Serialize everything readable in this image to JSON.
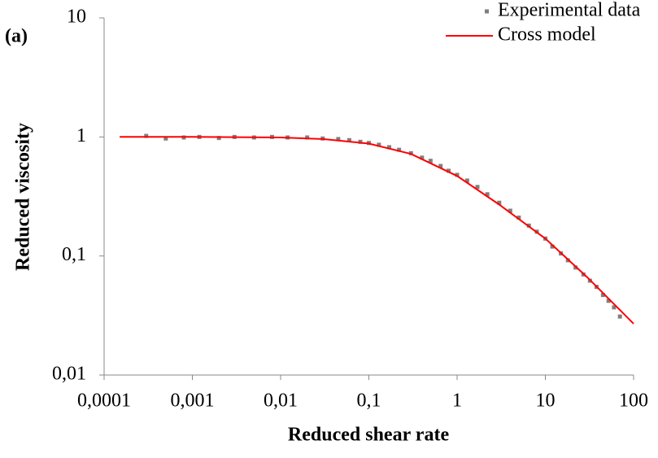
{
  "chart_data": {
    "type": "scatter",
    "annotation": "(a)",
    "x_label": "Reduced shear rate",
    "y_label": "Reduced viscosity",
    "xscale": "log",
    "yscale": "log",
    "xlim": [
      0.0001,
      100
    ],
    "ylim": [
      0.01,
      10
    ],
    "xticks": [
      {
        "value": 0.0001,
        "label": "0,0001"
      },
      {
        "value": 0.001,
        "label": "0,001"
      },
      {
        "value": 0.01,
        "label": "0,01"
      },
      {
        "value": 0.1,
        "label": "0,1"
      },
      1,
      10,
      100
    ],
    "yticks": [
      {
        "value": 0.01,
        "label": "0,01"
      },
      {
        "value": 0.1,
        "label": "0,1"
      },
      1,
      10
    ],
    "legend": "upper right",
    "series": [
      {
        "name": "Experimental data",
        "kind": "scatter",
        "color": "#7f7f7f",
        "x": [
          0.0003,
          0.0005,
          0.0008,
          0.0012,
          0.002,
          0.003,
          0.005,
          0.008,
          0.012,
          0.02,
          0.03,
          0.045,
          0.06,
          0.08,
          0.1,
          0.13,
          0.17,
          0.22,
          0.3,
          0.4,
          0.5,
          0.65,
          0.8,
          1,
          1.3,
          1.7,
          2.2,
          3,
          4,
          5,
          6.5,
          8,
          10,
          12,
          15,
          18,
          22,
          27,
          32,
          38,
          45,
          52,
          60,
          70
        ],
        "values": [
          1.02,
          0.97,
          0.99,
          1.0,
          0.98,
          1.0,
          0.99,
          1.0,
          0.99,
          0.99,
          0.97,
          0.96,
          0.94,
          0.91,
          0.89,
          0.86,
          0.82,
          0.78,
          0.73,
          0.67,
          0.63,
          0.57,
          0.52,
          0.48,
          0.43,
          0.38,
          0.33,
          0.28,
          0.24,
          0.21,
          0.18,
          0.16,
          0.14,
          0.12,
          0.105,
          0.092,
          0.08,
          0.07,
          0.062,
          0.055,
          0.047,
          0.042,
          0.037,
          0.031
        ]
      },
      {
        "name": "Cross model",
        "kind": "line",
        "color": "#ff0000",
        "x": [
          0.00015,
          0.001,
          0.01,
          0.03,
          0.1,
          0.3,
          1,
          3,
          10,
          30,
          100
        ],
        "values": [
          1,
          1,
          0.99,
          0.96,
          0.88,
          0.72,
          0.47,
          0.27,
          0.14,
          0.066,
          0.027
        ]
      }
    ]
  }
}
